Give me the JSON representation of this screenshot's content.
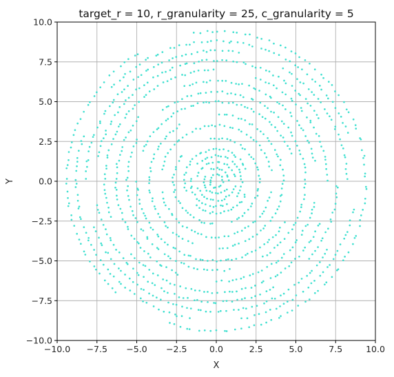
{
  "chart_data": {
    "type": "scatter",
    "title": "target_r = 10, r_granularity = 25, c_granularity = 5",
    "xlabel": "X",
    "ylabel": "Y",
    "xlim": [
      -10,
      10
    ],
    "ylim": [
      -10,
      10
    ],
    "xticks": [
      -10,
      -7.5,
      -5,
      -2.5,
      0,
      2.5,
      5,
      7.5,
      10
    ],
    "yticks": [
      -10,
      -7.5,
      -5,
      -2.5,
      0,
      2.5,
      5,
      7.5,
      10
    ],
    "xtick_labels": [
      "−10.0",
      "−7.5",
      "−5.0",
      "−2.5",
      "0.0",
      "2.5",
      "5.0",
      "7.5",
      "10.0"
    ],
    "ytick_labels": [
      "−10.0",
      "−7.5",
      "−5.0",
      "−2.5",
      "0.0",
      "2.5",
      "5.0",
      "7.5",
      "10.0"
    ],
    "grid": true,
    "point_color": "#40E0D0",
    "rings": [
      {
        "r": 0.4,
        "points": 14,
        "arcs": [
          [
            0,
            360
          ]
        ]
      },
      {
        "r": 0.8,
        "points": 22,
        "arcs": [
          [
            0,
            120
          ],
          [
            150,
            330
          ]
        ]
      },
      {
        "r": 1.2,
        "points": 30,
        "arcs": [
          [
            10,
            170
          ],
          [
            200,
            350
          ]
        ]
      },
      {
        "r": 1.6,
        "points": 38,
        "arcs": [
          [
            0,
            140
          ],
          [
            170,
            300
          ],
          [
            320,
            360
          ]
        ]
      },
      {
        "r": 2.0,
        "points": 44,
        "arcs": [
          [
            20,
            200
          ],
          [
            230,
            340
          ]
        ]
      },
      {
        "r": 2.7,
        "points": 55,
        "arcs": [
          [
            0,
            100
          ],
          [
            140,
            270
          ],
          [
            290,
            360
          ]
        ]
      },
      {
        "r": 3.5,
        "points": 70,
        "arcs": [
          [
            10,
            170
          ],
          [
            190,
            350
          ]
        ]
      },
      {
        "r": 4.2,
        "points": 80,
        "arcs": [
          [
            0,
            90
          ],
          [
            120,
            250
          ],
          [
            270,
            360
          ]
        ]
      },
      {
        "r": 5.0,
        "points": 95,
        "arcs": [
          [
            20,
            160
          ],
          [
            180,
            330
          ]
        ]
      },
      {
        "r": 5.6,
        "points": 100,
        "arcs": [
          [
            0,
            130
          ],
          [
            150,
            280
          ],
          [
            300,
            360
          ]
        ]
      },
      {
        "r": 6.3,
        "points": 110,
        "arcs": [
          [
            10,
            110
          ],
          [
            140,
            250
          ],
          [
            270,
            350
          ]
        ]
      },
      {
        "r": 7.0,
        "points": 120,
        "arcs": [
          [
            0,
            70
          ],
          [
            90,
            200
          ],
          [
            220,
            340
          ]
        ]
      },
      {
        "r": 7.6,
        "points": 125,
        "arcs": [
          [
            30,
            170
          ],
          [
            190,
            300
          ],
          [
            320,
            360
          ]
        ]
      },
      {
        "r": 8.2,
        "points": 130,
        "arcs": [
          [
            0,
            60
          ],
          [
            80,
            180
          ],
          [
            200,
            330
          ]
        ]
      },
      {
        "r": 8.8,
        "points": 130,
        "arcs": [
          [
            20,
            140
          ],
          [
            160,
            260
          ],
          [
            280,
            350
          ]
        ]
      },
      {
        "r": 9.4,
        "points": 135,
        "arcs": [
          [
            0,
            100
          ],
          [
            120,
            230
          ],
          [
            250,
            360
          ]
        ]
      }
    ]
  }
}
